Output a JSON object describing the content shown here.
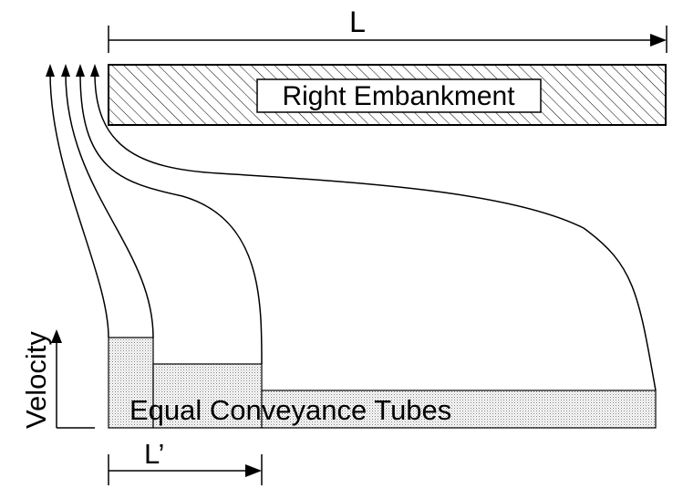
{
  "labels": {
    "length_l": "L",
    "embankment": "Right Embankment",
    "tubes": "Equal Conveyance Tubes",
    "length_l_prime": "L’",
    "velocity_axis": "Velocity"
  },
  "colors": {
    "line": "#000000",
    "hatch": "#000000",
    "stipple": "#bdbdbd",
    "background": "#ffffff"
  }
}
